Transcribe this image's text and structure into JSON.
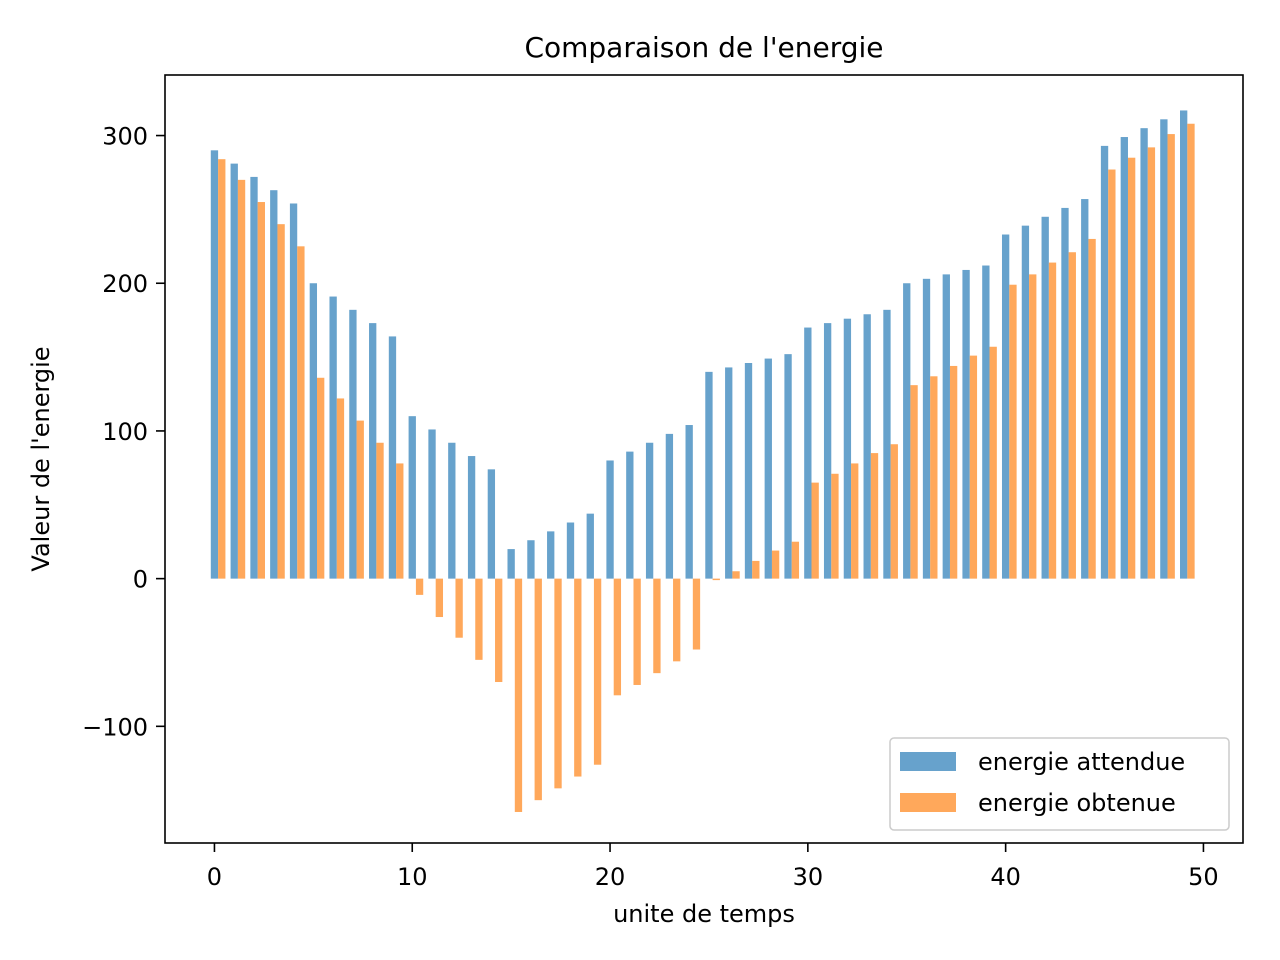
{
  "chart_data": {
    "type": "bar",
    "title": "Comparaison de l'energie",
    "xlabel": "unite de temps",
    "ylabel": "Valeur de l'energie",
    "xlim": [
      -2.5,
      52
    ],
    "ylim": [
      -179,
      341
    ],
    "xticks": [
      0,
      10,
      20,
      30,
      40,
      50
    ],
    "yticks": [
      -100,
      0,
      100,
      200,
      300
    ],
    "ytick_labels": [
      "−100",
      "0",
      "100",
      "200",
      "300"
    ],
    "grid": false,
    "legend_position": "bottom-right",
    "x": [
      0,
      1,
      2,
      3,
      4,
      5,
      6,
      7,
      8,
      9,
      10,
      11,
      12,
      13,
      14,
      15,
      16,
      17,
      18,
      19,
      20,
      21,
      22,
      23,
      24,
      25,
      26,
      27,
      28,
      29,
      30,
      31,
      32,
      33,
      34,
      35,
      36,
      37,
      38,
      39,
      40,
      41,
      42,
      43,
      44,
      45,
      46,
      47,
      48,
      49
    ],
    "series": [
      {
        "name": "energie attendue",
        "color": "#4c92c3",
        "values": [
          290,
          281,
          272,
          263,
          254,
          200,
          191,
          182,
          173,
          164,
          110,
          101,
          92,
          83,
          74,
          20,
          26,
          32,
          38,
          44,
          80,
          86,
          92,
          98,
          104,
          140,
          143,
          146,
          149,
          152,
          170,
          173,
          176,
          179,
          182,
          200,
          203,
          206,
          209,
          212,
          233,
          239,
          245,
          251,
          257,
          293,
          299,
          305,
          311,
          317
        ]
      },
      {
        "name": "energie obtenue",
        "color": "#ff993e",
        "values": [
          284,
          270,
          255,
          240,
          225,
          136,
          122,
          107,
          92,
          78,
          -11,
          -26,
          -40,
          -55,
          -70,
          -158,
          -150,
          -142,
          -134,
          -126,
          -79,
          -72,
          -64,
          -56,
          -48,
          -1,
          5,
          12,
          19,
          25,
          65,
          71,
          78,
          85,
          91,
          131,
          137,
          144,
          151,
          157,
          199,
          206,
          214,
          221,
          230,
          277,
          285,
          292,
          301,
          308
        ]
      }
    ]
  }
}
